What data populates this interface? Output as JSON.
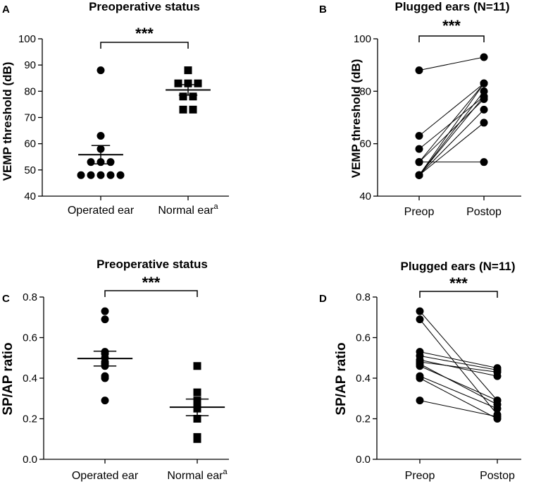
{
  "chart_data": [
    {
      "panel": "A",
      "type": "scatter",
      "title": "Preoperative status",
      "ylabel": "VEMP threshold (dB)",
      "ylim": [
        40,
        100
      ],
      "yticks": [
        "40",
        "50",
        "60",
        "70",
        "80",
        "90",
        "100"
      ],
      "categories": [
        {
          "label": "Operated ear",
          "superscript": ""
        },
        {
          "label": "Normal ear",
          "superscript": "a"
        }
      ],
      "groups": [
        {
          "name": "Operated ear",
          "marker": "circle",
          "mean": 55.8,
          "sem_low": 52.3,
          "sem_high": 59.3,
          "values": [
            88,
            63,
            58,
            53,
            53,
            53,
            48,
            48,
            48,
            48,
            48
          ]
        },
        {
          "name": "Normal ear",
          "marker": "square",
          "mean": 80.5,
          "sem_low": 78.5,
          "sem_high": 82.5,
          "values": [
            88,
            83,
            83,
            83,
            78,
            78,
            73,
            73
          ]
        }
      ],
      "significance": "***"
    },
    {
      "panel": "B",
      "type": "line",
      "title": "Plugged ears (N=11)",
      "ylabel": "VEMP threshold (dB)",
      "ylim": [
        40,
        100
      ],
      "yticks": [
        "40",
        "60",
        "80",
        "100"
      ],
      "categories": [
        {
          "label": "Preop",
          "superscript": ""
        },
        {
          "label": "Postop",
          "superscript": ""
        }
      ],
      "pairs": [
        [
          88,
          93
        ],
        [
          63,
          83
        ],
        [
          58,
          78
        ],
        [
          53,
          53
        ],
        [
          53,
          83
        ],
        [
          48,
          73
        ],
        [
          48,
          68
        ],
        [
          48,
          78
        ],
        [
          48,
          80
        ],
        [
          48,
          83
        ],
        [
          53,
          77
        ]
      ],
      "significance": "***"
    },
    {
      "panel": "C",
      "type": "scatter",
      "title": "Preoperative status",
      "ylabel": "SP/AP ratio",
      "ylim": [
        0.0,
        0.8
      ],
      "yticks": [
        "0.0",
        "0.2",
        "0.4",
        "0.6",
        "0.8"
      ],
      "categories": [
        {
          "label": "Operated ear",
          "superscript": ""
        },
        {
          "label": "Normal ear",
          "superscript": "a"
        }
      ],
      "groups": [
        {
          "name": "Operated ear",
          "marker": "circle",
          "mean": 0.497,
          "sem_low": 0.46,
          "sem_high": 0.533,
          "values": [
            0.73,
            0.69,
            0.53,
            0.52,
            0.5,
            0.48,
            0.47,
            0.46,
            0.41,
            0.4,
            0.29
          ]
        },
        {
          "name": "Normal ear",
          "marker": "square",
          "mean": 0.257,
          "sem_low": 0.215,
          "sem_high": 0.297,
          "values": [
            0.46,
            0.33,
            0.29,
            0.28,
            0.25,
            0.2,
            0.11,
            0.1
          ]
        }
      ],
      "significance": "***"
    },
    {
      "panel": "D",
      "type": "line",
      "title": "Plugged ears (N=11)",
      "ylabel": "SP/AP ratio",
      "ylim": [
        0.0,
        0.8
      ],
      "yticks": [
        "0.0",
        "0.2",
        "0.4",
        "0.6",
        "0.8"
      ],
      "categories": [
        {
          "label": "Preop",
          "superscript": ""
        },
        {
          "label": "Postop",
          "superscript": ""
        }
      ],
      "pairs": [
        [
          0.73,
          0.29
        ],
        [
          0.69,
          0.22
        ],
        [
          0.53,
          0.45
        ],
        [
          0.51,
          0.44
        ],
        [
          0.49,
          0.41
        ],
        [
          0.48,
          0.43
        ],
        [
          0.47,
          0.27
        ],
        [
          0.46,
          0.29
        ],
        [
          0.41,
          0.25
        ],
        [
          0.4,
          0.2
        ],
        [
          0.29,
          0.21
        ]
      ],
      "significance": "***"
    }
  ]
}
